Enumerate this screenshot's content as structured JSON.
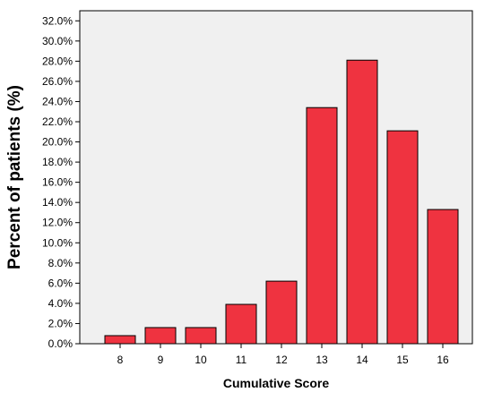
{
  "chart_data": {
    "type": "bar",
    "title": "",
    "xlabel": "Cumulative Score",
    "ylabel": "Percent of patients (%)",
    "categories": [
      "8",
      "9",
      "10",
      "11",
      "12",
      "13",
      "14",
      "15",
      "16"
    ],
    "values": [
      0.8,
      1.6,
      1.6,
      3.9,
      6.2,
      23.4,
      28.1,
      21.1,
      13.3
    ],
    "ylim": [
      0,
      33
    ],
    "yticks": [
      0,
      2,
      4,
      6,
      8,
      10,
      12,
      14,
      16,
      18,
      20,
      22,
      24,
      26,
      28,
      30,
      32
    ],
    "ytick_labels": [
      "0.0%",
      "2.0%",
      "4.0%",
      "6.0%",
      "8.0%",
      "10.0%",
      "12.0%",
      "14.0%",
      "16.0%",
      "18.0%",
      "20.0%",
      "22.0%",
      "24.0%",
      "26.0%",
      "28.0%",
      "30.0%",
      "32.0%"
    ],
    "grid": false,
    "legend": "none",
    "colors": {
      "bar": "#ef3340",
      "bar_outline": "#000000",
      "plot_background": "#f0f0f0",
      "axis": "#000000"
    }
  }
}
